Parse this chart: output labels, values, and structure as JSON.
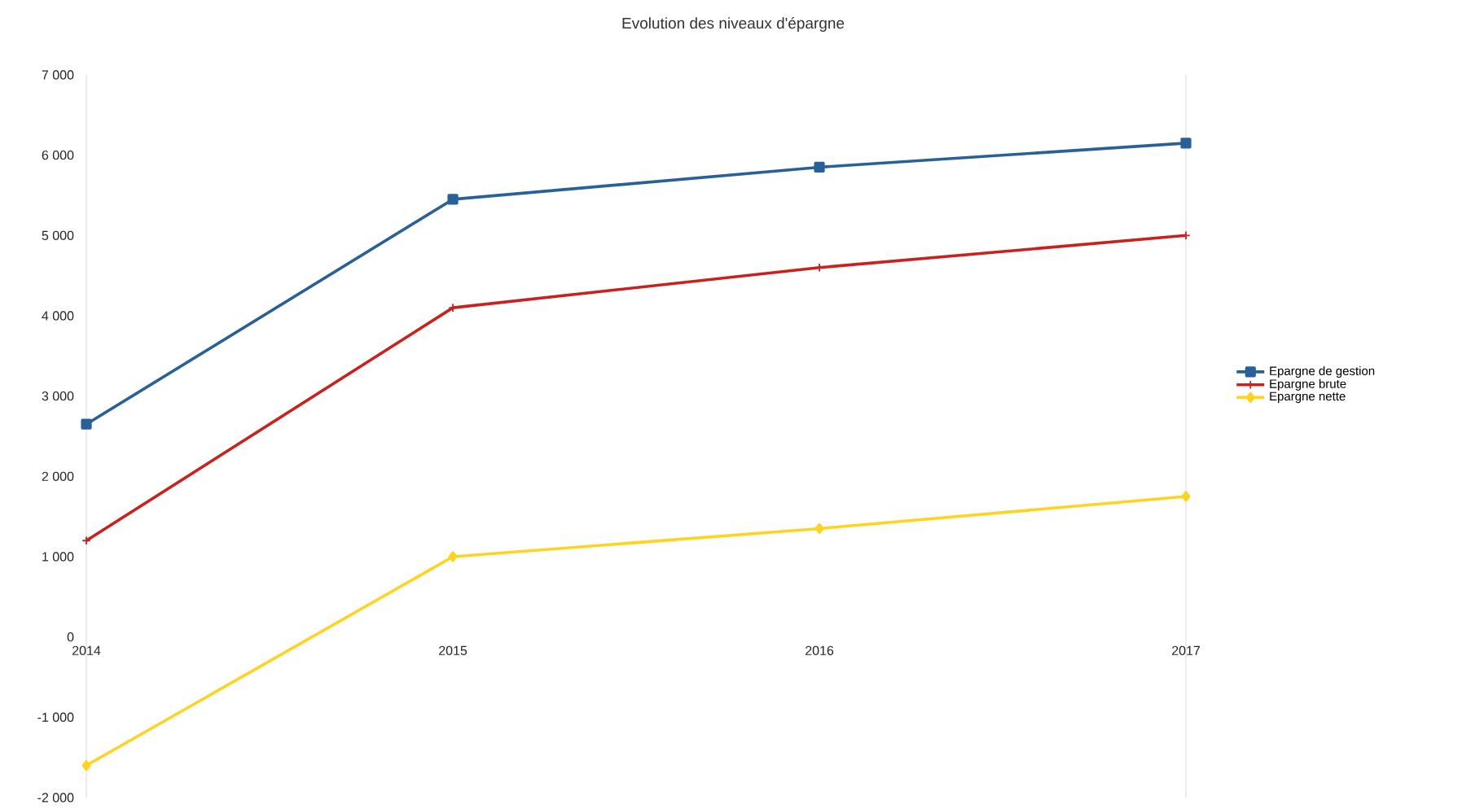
{
  "chart_data": {
    "type": "line",
    "title": "Evolution des niveaux d'épargne",
    "categories": [
      "2014",
      "2015",
      "2016",
      "2017"
    ],
    "series": [
      {
        "name": "Epargne de gestion",
        "color": "#2a6099",
        "marker": "square",
        "values": [
          2650,
          5450,
          5850,
          6150
        ]
      },
      {
        "name": "Epargne brute",
        "color": "#c9211e",
        "marker": "cross",
        "values": [
          1200,
          4100,
          4600,
          5000
        ]
      },
      {
        "name": "Epargne nette",
        "color": "#ffd320",
        "marker": "diamond",
        "values": [
          -1600,
          1000,
          1350,
          1750
        ]
      }
    ],
    "ylim": [
      -2000,
      7000
    ],
    "yticks": [
      {
        "value": -2000,
        "label": "-2 000"
      },
      {
        "value": -1000,
        "label": "-1 000"
      },
      0,
      {
        "value": 1000,
        "label": "1 000"
      },
      {
        "value": 2000,
        "label": "2 000"
      },
      {
        "value": 3000,
        "label": "3 000"
      },
      {
        "value": 4000,
        "label": "4 000"
      },
      {
        "value": 5000,
        "label": "5 000"
      },
      {
        "value": 6000,
        "label": "6 000"
      },
      {
        "value": 7000,
        "label": "7 000"
      }
    ],
    "legend": "right",
    "line_style": "solid"
  }
}
